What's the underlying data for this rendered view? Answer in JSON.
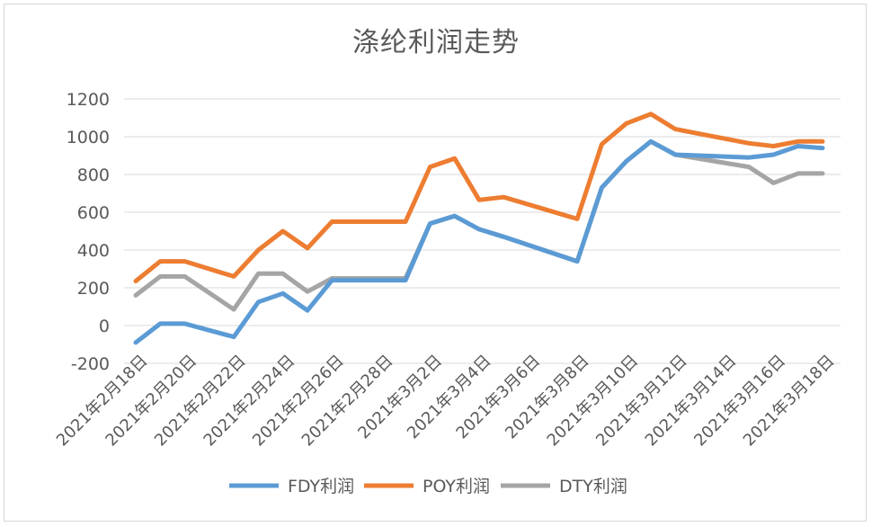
{
  "chart_data": {
    "type": "line",
    "title": "涤纶利润走势",
    "xlabel": "",
    "ylabel": "",
    "ylim": [
      -200,
      1200
    ],
    "yticks": [
      -200,
      0,
      200,
      400,
      600,
      800,
      1000,
      1200
    ],
    "grid": true,
    "legend_position": "bottom",
    "x_tick_labels": [
      "2021年2月18日",
      "2021年2月20日",
      "2021年2月22日",
      "2021年2月24日",
      "2021年2月26日",
      "2021年2月28日",
      "2021年3月2日",
      "2021年3月4日",
      "2021年3月6日",
      "2021年3月8日",
      "2021年3月10日",
      "2021年3月12日",
      "2021年3月14日",
      "2021年3月16日",
      "2021年3月18日"
    ],
    "x": [
      "2021-02-18",
      "2021-02-19",
      "2021-02-20",
      "2021-02-22",
      "2021-02-23",
      "2021-02-24",
      "2021-02-25",
      "2021-02-26",
      "2021-03-01",
      "2021-03-02",
      "2021-03-03",
      "2021-03-04",
      "2021-03-05",
      "2021-03-08",
      "2021-03-09",
      "2021-03-10",
      "2021-03-11",
      "2021-03-12",
      "2021-03-15",
      "2021-03-16",
      "2021-03-17",
      "2021-03-18"
    ],
    "series": [
      {
        "name": "FDY利润",
        "color": "#5b9bd5",
        "values": [
          -90,
          10,
          10,
          -60,
          125,
          170,
          80,
          240,
          240,
          540,
          580,
          510,
          470,
          340,
          730,
          870,
          975,
          905,
          890,
          905,
          950,
          940
        ]
      },
      {
        "name": "POY利润",
        "color": "#ed7d31",
        "values": [
          235,
          340,
          340,
          260,
          400,
          500,
          410,
          550,
          550,
          840,
          885,
          665,
          680,
          565,
          960,
          1070,
          1120,
          1040,
          965,
          950,
          975,
          975
        ]
      },
      {
        "name": "DTY利润",
        "color": "#a5a5a5",
        "values": [
          160,
          260,
          260,
          85,
          275,
          275,
          180,
          250,
          250,
          540,
          580,
          510,
          470,
          340,
          730,
          870,
          975,
          905,
          840,
          755,
          805,
          805
        ]
      }
    ]
  }
}
